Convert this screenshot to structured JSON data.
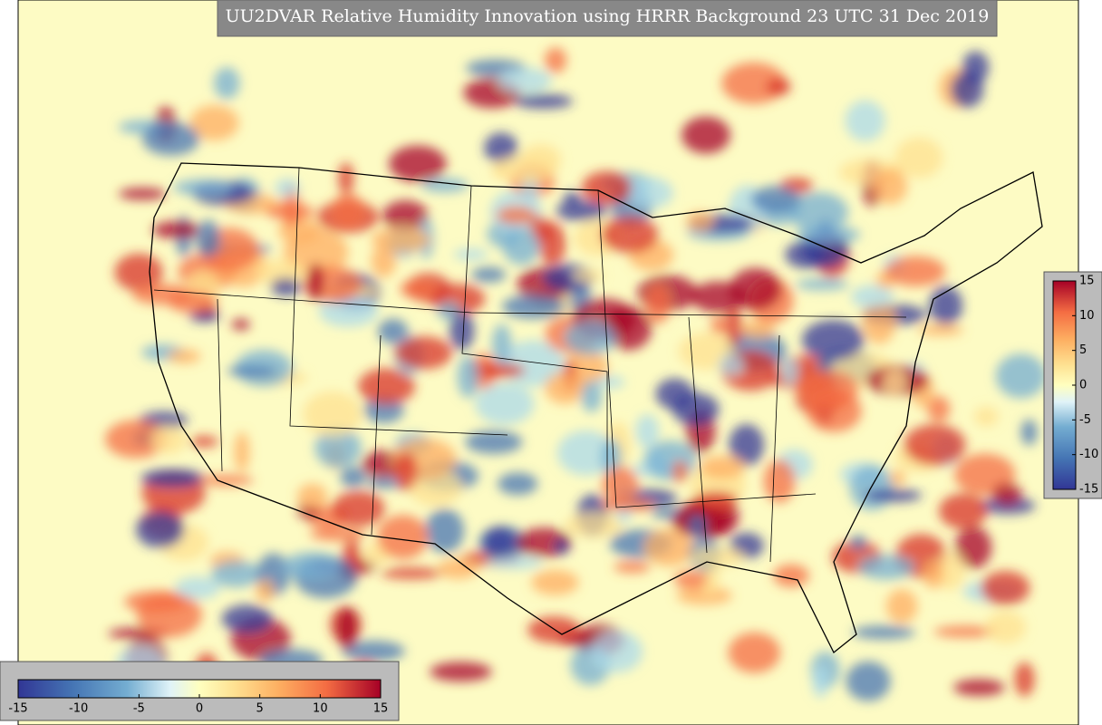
{
  "title": "UU2DVAR Relative Humidity Innovation using HRRR Background 23 UTC 31 Dec 2019",
  "colorbar_bottom": {
    "lim": [
      -15,
      15
    ],
    "ticks": [
      -15,
      -10,
      -5,
      0,
      5,
      10,
      15
    ]
  },
  "colorbar_right": {
    "lim": [
      -15,
      15
    ],
    "ticks": [
      15,
      10,
      5,
      0,
      -5,
      -10,
      -15
    ]
  }
}
